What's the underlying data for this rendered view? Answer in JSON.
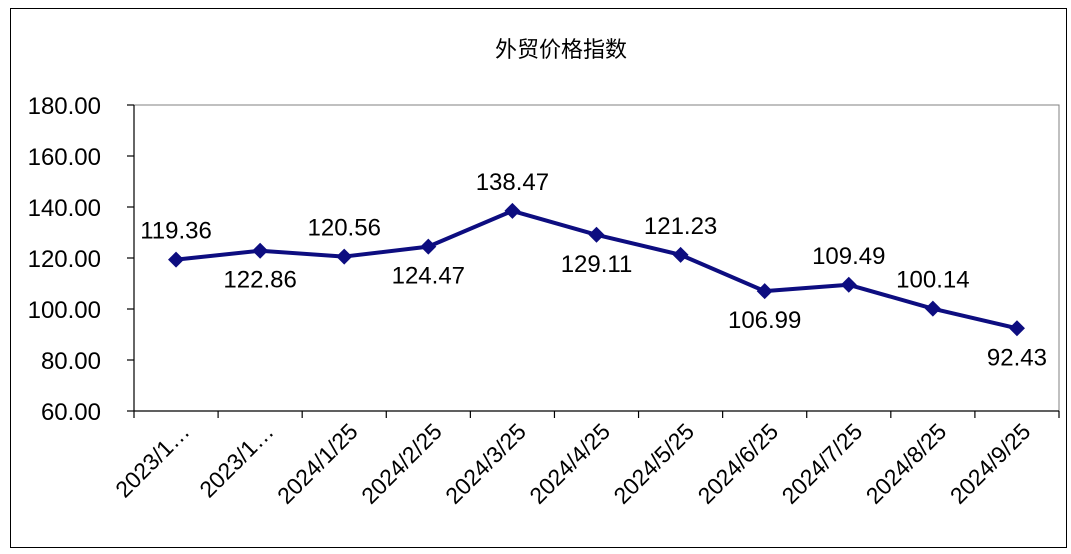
{
  "chart_data": {
    "type": "line",
    "title": "外贸价格指数",
    "categories": [
      "2023/1…",
      "2023/1…",
      "2024/1/25",
      "2024/2/25",
      "2024/3/25",
      "2024/4/25",
      "2024/5/25",
      "2024/6/25",
      "2024/7/25",
      "2024/8/25",
      "2024/9/25"
    ],
    "series": [
      {
        "values": [
          119.36,
          122.86,
          120.56,
          124.47,
          138.47,
          129.11,
          121.23,
          106.99,
          109.49,
          100.14,
          92.43
        ]
      }
    ],
    "data_labels": [
      "119.36",
      "122.86",
      "120.56",
      "124.47",
      "138.47",
      "129.11",
      "121.23",
      "106.99",
      "109.49",
      "100.14",
      "92.43"
    ],
    "y_ticks": [
      "60.00",
      "80.00",
      "100.00",
      "120.00",
      "140.00",
      "160.00",
      "180.00"
    ],
    "ylim": [
      60,
      180
    ],
    "xlabel": "",
    "ylabel": "",
    "grid": false,
    "legend": "none",
    "colors": {
      "line": "#0d0d80",
      "marker": "#0d0d80",
      "axis": "#000000",
      "plot_border": "#808080"
    }
  }
}
